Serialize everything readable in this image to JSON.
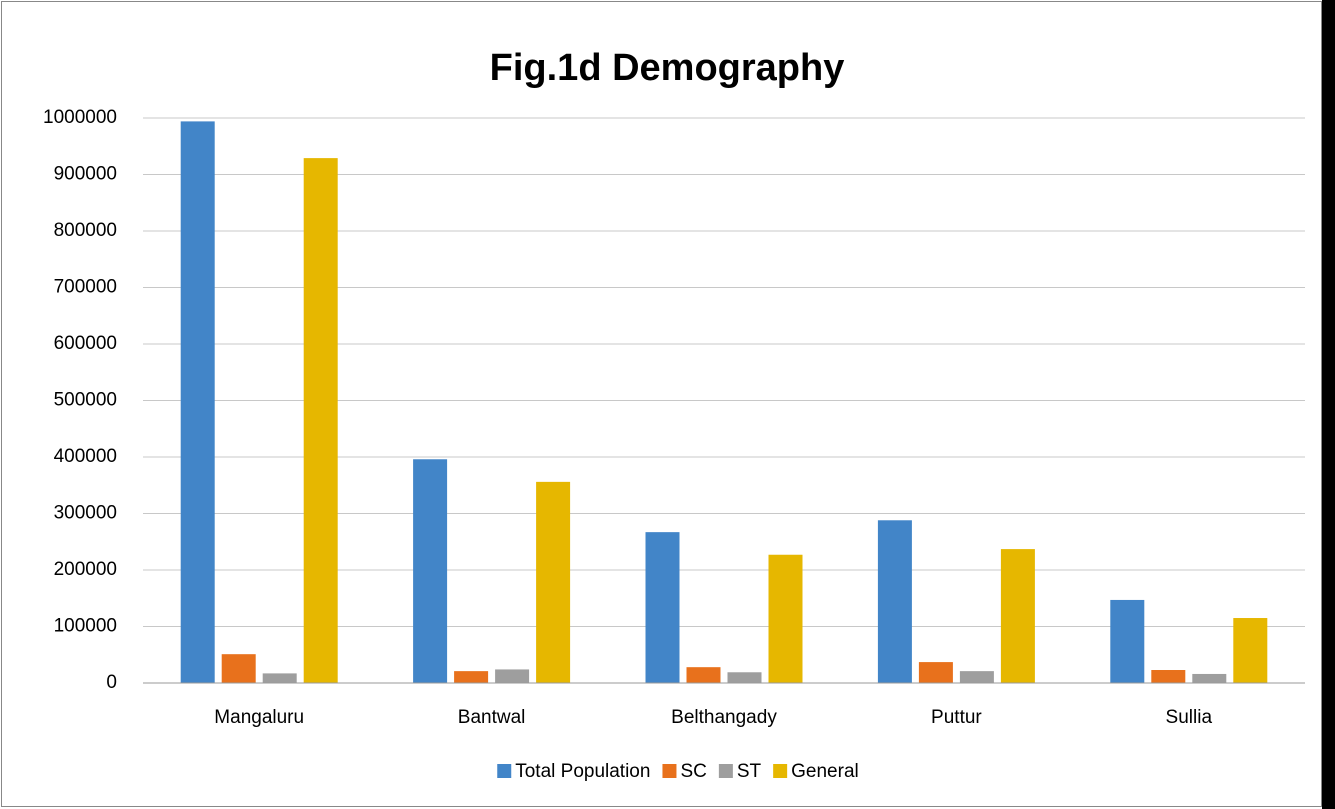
{
  "chart_data": {
    "type": "bar",
    "title": "Fig.1d  Demography",
    "categories": [
      "Mangaluru",
      "Bantwal",
      "Belthangady",
      "Puttur",
      "Sullia"
    ],
    "series": [
      {
        "name": "Total Population",
        "color": "#4285c8",
        "values": [
          994000,
          396000,
          267000,
          288000,
          147000
        ]
      },
      {
        "name": "SC",
        "color": "#e8711c",
        "values": [
          51000,
          21000,
          28000,
          37000,
          23000
        ]
      },
      {
        "name": "ST",
        "color": "#9e9e9e",
        "values": [
          17000,
          24000,
          19000,
          21000,
          16000
        ]
      },
      {
        "name": "General",
        "color": "#e6b700",
        "values": [
          929000,
          356000,
          227000,
          237000,
          115000
        ]
      }
    ],
    "ylim": [
      0,
      1000000
    ],
    "yticks": [
      0,
      100000,
      200000,
      300000,
      400000,
      500000,
      600000,
      700000,
      800000,
      900000,
      1000000
    ],
    "grid": true,
    "legend": "bottom"
  }
}
